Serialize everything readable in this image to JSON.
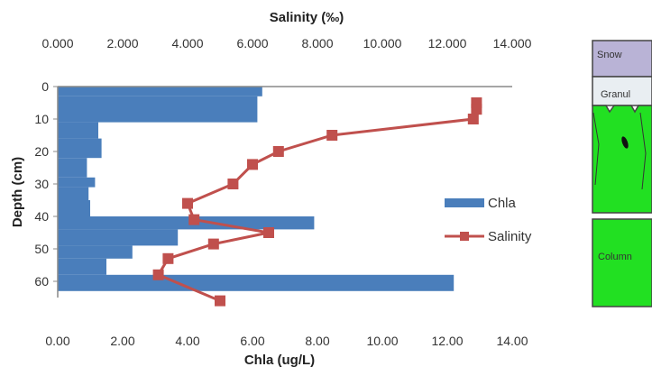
{
  "chart_data": {
    "type": "bar",
    "title": "",
    "xlabel_top": "Salinity (‰)",
    "xlabel_bottom": "Chla (ug/L)",
    "ylabel": "Depth (cm)",
    "depth_axis": {
      "range": [
        0,
        65
      ],
      "ticks": [
        "0",
        "10",
        "20",
        "30",
        "40",
        "50",
        "60"
      ],
      "reversed": true
    },
    "chla_axis": {
      "range": [
        0,
        14
      ],
      "ticks": [
        "0.00",
        "2.00",
        "4.00",
        "6.00",
        "8.00",
        "10.00",
        "12.00",
        "14.00"
      ]
    },
    "salinity_axis": {
      "range": [
        0,
        14
      ],
      "ticks": [
        "0.000",
        "2.000",
        "4.000",
        "6.000",
        "8.000",
        "10.000",
        "12.000",
        "14.000"
      ]
    },
    "series": [
      {
        "name": "Chla",
        "kind": "horizontal-bar",
        "color": "#4a7ebb",
        "bars": [
          {
            "from": 0,
            "to": 3,
            "value": 6.3
          },
          {
            "from": 3,
            "to": 11,
            "value": 6.15
          },
          {
            "from": 11,
            "to": 16,
            "value": 1.25
          },
          {
            "from": 16,
            "to": 22,
            "value": 1.35
          },
          {
            "from": 22,
            "to": 28,
            "value": 0.9
          },
          {
            "from": 28,
            "to": 31,
            "value": 1.15
          },
          {
            "from": 31,
            "to": 35,
            "value": 0.95
          },
          {
            "from": 35,
            "to": 40,
            "value": 1.0
          },
          {
            "from": 40,
            "to": 44,
            "value": 7.9
          },
          {
            "from": 44,
            "to": 49,
            "value": 3.7
          },
          {
            "from": 49,
            "to": 53,
            "value": 2.3
          },
          {
            "from": 53,
            "to": 58,
            "value": 1.5
          },
          {
            "from": 58,
            "to": 63,
            "value": 12.2
          }
        ]
      },
      {
        "name": "Salinity",
        "kind": "line-markers",
        "color": "#c0504d",
        "points": [
          {
            "salinity": 12.9,
            "depth": 5
          },
          {
            "salinity": 12.9,
            "depth": 7
          },
          {
            "salinity": 12.8,
            "depth": 10
          },
          {
            "salinity": 8.45,
            "depth": 15
          },
          {
            "salinity": 6.8,
            "depth": 20
          },
          {
            "salinity": 6.0,
            "depth": 24
          },
          {
            "salinity": 5.4,
            "depth": 30
          },
          {
            "salinity": 4.0,
            "depth": 36
          },
          {
            "salinity": 4.2,
            "depth": 41
          },
          {
            "salinity": 6.5,
            "depth": 45
          },
          {
            "salinity": 4.8,
            "depth": 48.5
          },
          {
            "salinity": 3.4,
            "depth": 53
          },
          {
            "salinity": 3.1,
            "depth": 58
          },
          {
            "salinity": 5.0,
            "depth": 66
          }
        ]
      }
    ],
    "legend": {
      "placement": "right",
      "items": [
        "Chla",
        "Salinity"
      ]
    }
  },
  "stratigraphy": {
    "layers": [
      {
        "label": "Snow",
        "color": "#b9b3d6"
      },
      {
        "label": "Granul",
        "color": "#e9eef2"
      },
      {
        "label": "",
        "color": "#22e022"
      },
      {
        "label": "Column",
        "color": "#22e022"
      }
    ]
  }
}
